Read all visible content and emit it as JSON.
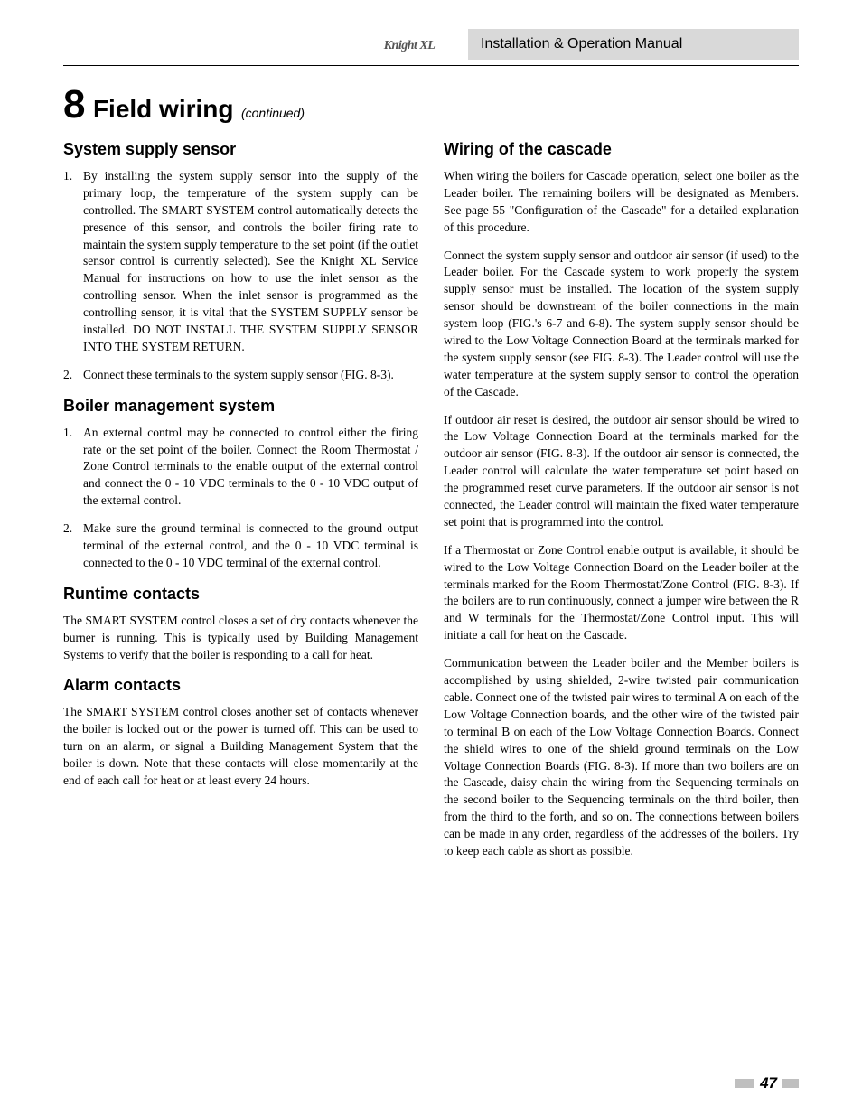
{
  "header": {
    "logo_text": "Knight XL",
    "manual_title": "Installation & Operation Manual"
  },
  "chapter": {
    "number": "8",
    "title": "Field wiring",
    "continued": "(continued)"
  },
  "left": {
    "system_supply": {
      "heading": "System supply sensor",
      "items": [
        "By installing the system supply sensor into the supply of the primary loop, the temperature of the system supply can be controlled.  The SMART SYSTEM control automatically detects the presence of this sensor, and controls the boiler firing rate to maintain the system supply temperature to the set point (if the outlet sensor control is currently selected).  See the Knight XL Service Manual for instructions on how to use the inlet sensor as the controlling sensor.  When the inlet sensor is programmed as the controlling sensor, it is vital that the SYSTEM SUPPLY sensor be installed.  DO NOT INSTALL THE SYSTEM SUPPLY SENSOR INTO THE SYSTEM RETURN.",
        "Connect these terminals to the system supply sensor (FIG. 8-3)."
      ]
    },
    "bms": {
      "heading": "Boiler management system",
      "items": [
        "An external control may be connected to control either the firing rate or the set point of the boiler.  Connect the Room Thermostat / Zone Control terminals to the enable output of the external control and connect the 0 - 10 VDC terminals to the 0 - 10 VDC output of the external control.",
        "Make sure the ground terminal is connected to the ground output terminal of the external control, and the 0 - 10 VDC terminal is connected to the 0 - 10 VDC terminal of the external control."
      ]
    },
    "runtime": {
      "heading": "Runtime contacts",
      "body": "The SMART SYSTEM control closes a set of dry contacts whenever the burner is running.  This is typically used by Building Management Systems to verify that the boiler is responding to a call for heat."
    },
    "alarm": {
      "heading": "Alarm contacts",
      "body": "The SMART SYSTEM control closes another set of contacts whenever the boiler is locked out or the power is turned off.  This can be used to turn on an alarm, or signal a Building Management System that the boiler is down.  Note that these contacts will close momentarily at the end of each call for heat or at least every 24 hours."
    }
  },
  "right": {
    "cascade": {
      "heading": "Wiring of the cascade",
      "p1": "When wiring the boilers for Cascade operation, select one boiler as the Leader boiler. The remaining boilers will be designated as Members.  See page 55 \"Configuration of the Cascade\" for a detailed explanation of this procedure.",
      "p2": "Connect the system supply sensor and outdoor air sensor (if used) to the Leader boiler. For the Cascade system to work properly the system supply sensor must be installed. The location of the system supply sensor should be downstream of the boiler connections in the main system loop (FIG.'s 6-7 and 6-8). The system supply sensor should be wired to the Low Voltage Connection Board at the terminals marked for the system supply sensor (see FIG. 8-3). The Leader control will use the water temperature at the system supply sensor to control the operation of the Cascade.",
      "p3": "If outdoor air reset is desired, the outdoor air sensor should be wired to the Low Voltage Connection Board at the terminals marked for the outdoor air sensor (FIG. 8-3). If the outdoor air sensor is connected, the Leader control will calculate the water temperature set point based on the programmed reset curve parameters. If the outdoor air sensor is not connected, the Leader control will maintain the fixed water temperature set point that is programmed into the control.",
      "p4": "If a Thermostat or Zone Control enable output is available, it should be wired to the Low Voltage Connection Board on the Leader boiler at the terminals marked for the Room Thermostat/Zone Control (FIG. 8-3).  If  the boilers are to run continuously, connect a jumper wire between the R and W terminals for the Thermostat/Zone Control input. This will initiate a call for heat on the Cascade.",
      "p5": "Communication between the Leader boiler and the Member boilers is accomplished by using shielded, 2-wire twisted pair communication cable. Connect one of the twisted pair wires to terminal A on each of the Low Voltage Connection boards, and the other wire of the twisted pair to terminal B on each of the Low Voltage Connection Boards.  Connect the shield wires to one of the shield ground terminals on the Low Voltage Connection Boards (FIG. 8-3).  If more than two boilers are on the Cascade, daisy chain the wiring from the Sequencing terminals on the second boiler to the Sequencing terminals on the third boiler, then from the third to the forth, and so on.  The connections between boilers can be made in any order, regardless of the addresses of the boilers.  Try to keep each cable as short as possible."
    }
  },
  "footer": {
    "page": "47"
  }
}
